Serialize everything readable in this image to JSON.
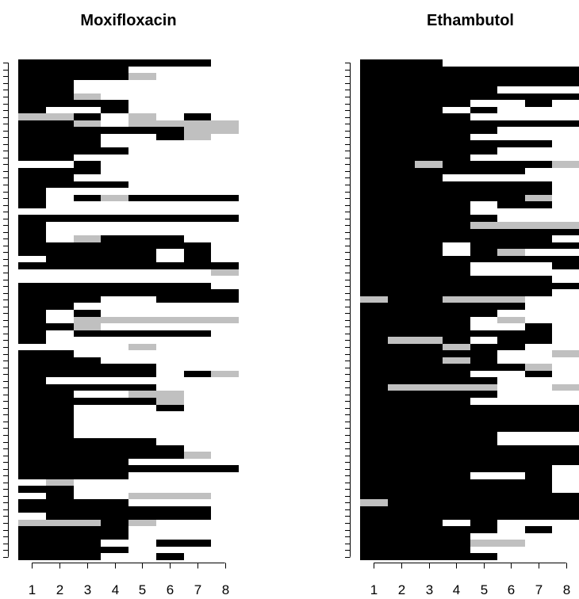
{
  "colors": {
    "resistant": "#000000",
    "intermediate": "#c0c0c0",
    "susceptible": "#ffffff",
    "axis": "#000000"
  },
  "chart_data": [
    {
      "type": "heatmap",
      "title": "Moxifloxacin",
      "xlabel": "",
      "ylabel": "",
      "x_ticks": [
        "1",
        "2",
        "3",
        "4",
        "5",
        "6",
        "7",
        "8"
      ],
      "n_rows": 74,
      "legend": "none",
      "grid": false,
      "color_scale": {
        "B": "black",
        "G": "grey",
        "W": "white"
      },
      "rows": [
        "BBBBBBBW",
        "BBBBWWWW",
        "BBBBGWWW",
        "BBWWWWWW",
        "BBWWWWWW",
        "BBGWWWWW",
        "BBBBWWWW",
        "BWWBWWWW",
        "GGBWGWBW",
        "BBGWGGGG",
        "BBBBBBGG",
        "BBBWWBGW",
        "BBBWWWWW",
        "BBBBWWWW",
        "BBWWWWWW",
        "WWBWWWWW",
        "BBBWWWWW",
        "BBWWWWWW",
        "BBBBWWWW",
        "BWWWWWWW",
        "BWBGBBBB",
        "BWWWWWWW",
        "WWWWWWWW",
        "BBBBBBBB",
        "BWWWWWWW",
        "BWWWWWWW",
        "BWGBBBWW",
        "BBBBBBBW",
        "BBBBBWBW",
        "WBBBBWBW",
        "BBBBBBBB",
        "WWWWWWWG",
        "WWWWWWWW",
        "BBBBBBBW",
        "BBBBBBBB",
        "BBBWWBBB",
        "BBWWWWWW",
        "BWBWWWWW",
        "BWGGGGGG",
        "BBGWWWWW",
        "BWBBBBBW",
        "BWWWWWWW",
        "WWWWGWWW",
        "BBWWWWWW",
        "BBBWWWWW",
        "BBBBBWWW",
        "BBBBBWBG",
        "BWWWWWWW",
        "BBBBBWWW",
        "BBWWGGWW",
        "BBBBBGWW",
        "BBWWWBWW",
        "BBWWWWWW",
        "BBWWWWWW",
        "BBWWWWWW",
        "BBWWWWWW",
        "BBBBBWWW",
        "BBBBBBWW",
        "BBBBBBGW",
        "BBBBWWWW",
        "BBBBBBBB",
        "BBBBWWWW",
        "WGWWWWWW",
        "BBWWWWWW",
        "WBWWGGGW",
        "BBBBWWWW",
        "BBBBBBBW",
        "WBBBBBBW",
        "GGGBGWWW",
        "BBBBWWWW",
        "BBBBWWWW",
        "BBBWWBBW",
        "BBBBWWWW",
        "BBBWWBWW"
      ]
    },
    {
      "type": "heatmap",
      "title": "Ethambutol",
      "xlabel": "",
      "ylabel": "",
      "x_ticks": [
        "1",
        "2",
        "3",
        "4",
        "5",
        "6",
        "7",
        "8"
      ],
      "n_rows": 74,
      "legend": "none",
      "grid": false,
      "color_scale": {
        "B": "black",
        "G": "grey",
        "W": "white"
      },
      "rows": [
        "BBBWWWWW",
        "BBBBBBBB",
        "BBBBBBBB",
        "BBBBBBBB",
        "BBBBBWWW",
        "BBBBBBBB",
        "BBBBWWBW",
        "BBBWBWWW",
        "BBBBWWWW",
        "BBBBBBBB",
        "BBBBBWWW",
        "BBBBWWWW",
        "BBBBBBBW",
        "BBBBBWWW",
        "BBBBWWWW",
        "BBGBBBBG",
        "BBBBBBWW",
        "BBBWWWWW",
        "BBBBBBBW",
        "BBBBBBBW",
        "BBBBBBGW",
        "BBBBWBBW",
        "BBBBWWWW",
        "BBBBBWWW",
        "BBBBGGGG",
        "BBBBBBBB",
        "BBBBBBBW",
        "BBBWBBBB",
        "BBBWBGWW",
        "BBBBBBBB",
        "BBBBWWWB",
        "BBBBWWWW",
        "BBBBBBBW",
        "BBBBBBBB",
        "BBBBBBBW",
        "GBBGGGWW",
        "BBBBBBWW",
        "BBBBBWWW",
        "BBBBWGWW",
        "BBBBWWBW",
        "BBBBBBBW",
        "BGGBWBBW",
        "BBBGBBWW",
        "BBBBBWWG",
        "BBBGBWWW",
        "BBBBBBGW",
        "BBBBWWBW",
        "BBBBBWWW",
        "BGGGGWWG",
        "BBBBBWWW",
        "BBBBWWWW",
        "BBBBBBBB",
        "BBBBBBBB",
        "BBBBBBBB",
        "BBBBBBBB",
        "BBBBBWWW",
        "BBBBBWWW",
        "BBBBBBBB",
        "BBBBBBBB",
        "BBBBBBBB",
        "BBBBBBBW",
        "BBBBWWBW",
        "BBBBBBBW",
        "BBBBBBBW",
        "BBBBBBBB",
        "GBBBBBBB",
        "BBBBBBBB",
        "BBBBBBBB",
        "BBBWBWWW",
        "BBBBBWBW",
        "BBBBWWWW",
        "BBBBGGWW",
        "BBBBWWWW",
        "BBBBBWWW"
      ]
    }
  ]
}
